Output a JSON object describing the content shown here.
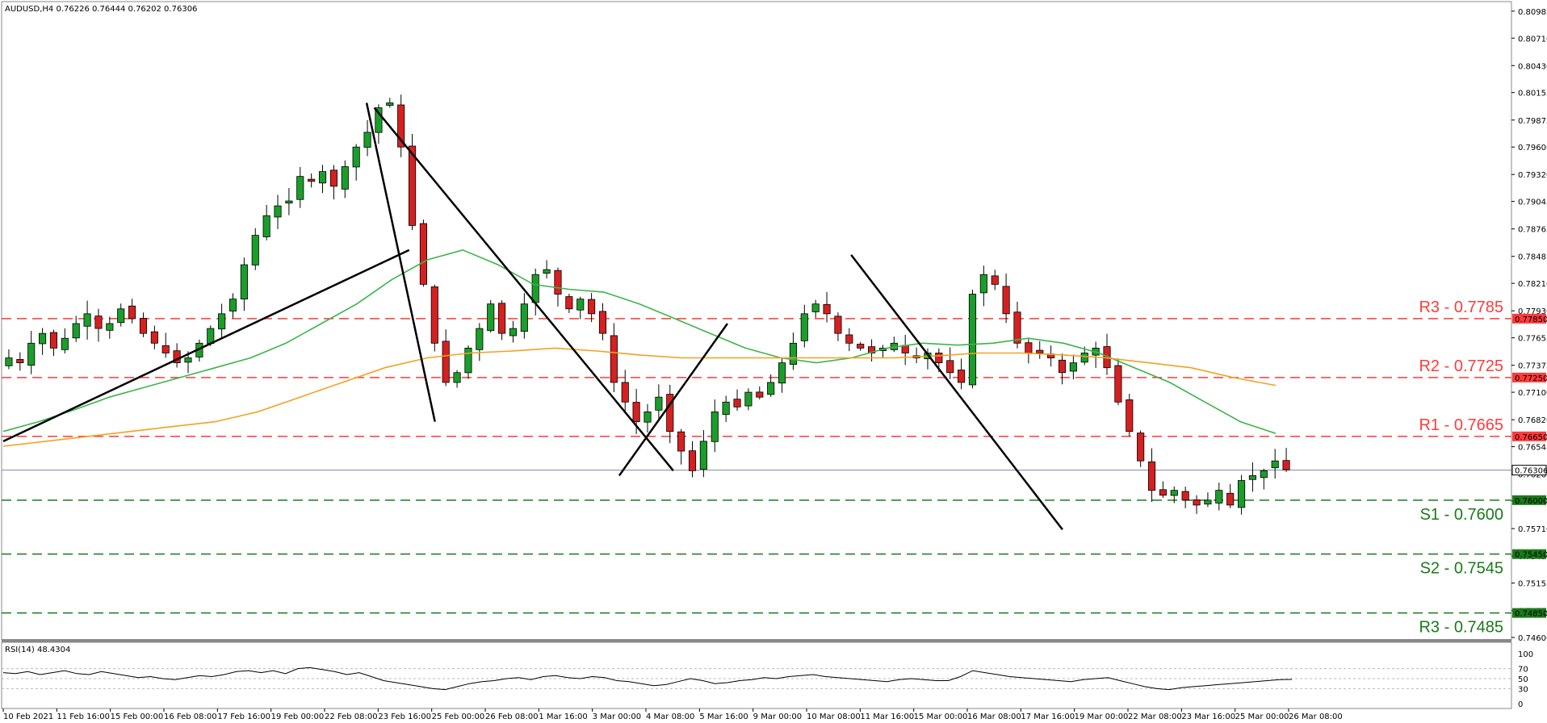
{
  "chart_data": [
    {
      "type": "candlestick",
      "title": "AUDUSD,H4  0.76226 0.76444 0.76202 0.76306",
      "ylim": [
        0.746,
        0.81
      ],
      "price_ticks": [
        "0.80985",
        "0.80710",
        "0.80430",
        "0.80155",
        "0.79875",
        "0.79600",
        "0.79320",
        "0.79045",
        "0.78765",
        "0.78485",
        "0.78210",
        "0.77930",
        "0.77655",
        "0.77375",
        "0.77100",
        "0.76820",
        "0.76545",
        "0.76265",
        "0.75990",
        "0.75710",
        "0.75430",
        "0.75155",
        "0.74875",
        "0.74600"
      ],
      "x_labels": [
        "10 Feb 2021",
        "11 Feb 16:00",
        "15 Feb 00:00",
        "16 Feb 08:00",
        "17 Feb 16:00",
        "19 Feb 00:00",
        "22 Feb 08:00",
        "23 Feb 16:00",
        "25 Feb 00:00",
        "26 Feb 08:00",
        "1 Mar 16:00",
        "3 Mar 00:00",
        "4 Mar 08:00",
        "5 Mar 16:00",
        "9 Mar 00:00",
        "10 Mar 08:00",
        "11 Mar 16:00",
        "15 Mar 00:00",
        "16 Mar 08:00",
        "17 Mar 16:00",
        "19 Mar 00:00",
        "22 Mar 08:00",
        "23 Mar 16:00",
        "25 Mar 00:00",
        "26 Mar 08:00"
      ],
      "close_path": [
        0.7745,
        0.774,
        0.776,
        0.777,
        0.7755,
        0.7765,
        0.778,
        0.779,
        0.7775,
        0.778,
        0.7795,
        0.7785,
        0.777,
        0.776,
        0.775,
        0.774,
        0.7745,
        0.776,
        0.7775,
        0.779,
        0.7805,
        0.784,
        0.787,
        0.789,
        0.79,
        0.7905,
        0.793,
        0.7925,
        0.7935,
        0.792,
        0.794,
        0.796,
        0.7975,
        0.8,
        0.8005,
        0.796,
        0.788,
        0.782,
        0.776,
        0.772,
        0.773,
        0.7755,
        0.7775,
        0.78,
        0.777,
        0.7775,
        0.78,
        0.783,
        0.7835,
        0.781,
        0.7795,
        0.7805,
        0.779,
        0.777,
        0.772,
        0.77,
        0.768,
        0.769,
        0.7705,
        0.767,
        0.765,
        0.763,
        0.766,
        0.769,
        0.77,
        0.7695,
        0.771,
        0.7705,
        0.772,
        0.774,
        0.776,
        0.779,
        0.78,
        0.779,
        0.777,
        0.776,
        0.7755,
        0.775,
        0.7755,
        0.776,
        0.775,
        0.7745,
        0.775,
        0.774,
        0.773,
        0.772,
        0.781,
        0.783,
        0.782,
        0.779,
        0.776,
        0.775,
        0.775,
        0.7745,
        0.773,
        0.774,
        0.775,
        0.7755,
        0.7735,
        0.77,
        0.767,
        0.764,
        0.761,
        0.7605,
        0.761,
        0.76,
        0.7595,
        0.76,
        0.761,
        0.7595,
        0.762,
        0.7625,
        0.763,
        0.764,
        0.7631
      ],
      "series": [
        {
          "name": "MA",
          "color": "#3cb44b",
          "values": [
            0.767,
            0.768,
            0.7692,
            0.7705,
            0.7715,
            0.7725,
            0.7735,
            0.7745,
            0.776,
            0.778,
            0.78,
            0.7825,
            0.7845,
            0.7855,
            0.784,
            0.782,
            0.7815,
            0.7812,
            0.78,
            0.7785,
            0.777,
            0.7755,
            0.7745,
            0.774,
            0.7745,
            0.7755,
            0.776,
            0.7758,
            0.776,
            0.7765,
            0.776,
            0.775,
            0.7735,
            0.772,
            0.77,
            0.768,
            0.7668
          ]
        },
        {
          "name": "MA",
          "color": "#f5a020",
          "values": [
            0.7655,
            0.766,
            0.7665,
            0.767,
            0.7675,
            0.768,
            0.769,
            0.7705,
            0.772,
            0.7735,
            0.7745,
            0.775,
            0.7752,
            0.7755,
            0.7752,
            0.7748,
            0.7745,
            0.7745,
            0.7745,
            0.7745,
            0.7745,
            0.7745,
            0.7747,
            0.775,
            0.775,
            0.7748,
            0.7745,
            0.774,
            0.7735,
            0.7725,
            0.7717
          ]
        }
      ],
      "levels": [
        {
          "label": "R3 - 0.7785",
          "value": 0.7785,
          "tag": "0.77850",
          "color": "#ff3b3b"
        },
        {
          "label": "R2 - 0.7725",
          "value": 0.7725,
          "tag": "0.77250",
          "color": "#ff3b3b"
        },
        {
          "label": "R1 - 0.7665",
          "value": 0.7665,
          "tag": "0.76650",
          "color": "#ff3b3b"
        },
        {
          "label": "S1 - 0.7600",
          "value": 0.76,
          "tag": "0.76000",
          "color": "#1a7a1a"
        },
        {
          "label": "S2 - 0.7545",
          "value": 0.7545,
          "tag": "0.75450",
          "color": "#1a7a1a"
        },
        {
          "label": "R3 - 0.7485",
          "value": 0.7485,
          "tag": "0.74850",
          "color": "#1a7a1a"
        }
      ],
      "current_price": {
        "value": 0.76306,
        "tag": "0.76306"
      }
    },
    {
      "type": "line",
      "title": "RSI(14) 48.4304",
      "ylim": [
        0,
        100
      ],
      "ticks": [
        "100",
        "70",
        "50",
        "30",
        "0"
      ],
      "dashed_levels": [
        70,
        50,
        30
      ],
      "values": [
        62,
        60,
        64,
        58,
        62,
        66,
        60,
        58,
        64,
        60,
        56,
        52,
        54,
        50,
        48,
        52,
        56,
        54,
        58,
        64,
        66,
        62,
        66,
        60,
        70,
        72,
        68,
        64,
        58,
        62,
        54,
        46,
        42,
        38,
        34,
        30,
        28,
        34,
        40,
        44,
        46,
        50,
        52,
        48,
        54,
        56,
        52,
        50,
        54,
        52,
        46,
        44,
        40,
        36,
        38,
        44,
        50,
        46,
        40,
        42,
        46,
        48,
        52,
        50,
        54,
        56,
        58,
        54,
        52,
        50,
        48,
        46,
        44,
        48,
        50,
        48,
        46,
        46,
        54,
        66,
        62,
        58,
        54,
        52,
        50,
        48,
        46,
        44,
        48,
        50,
        52,
        46,
        40,
        34,
        30,
        28,
        32,
        34,
        36,
        38,
        40,
        42,
        44,
        46,
        48,
        48.43
      ]
    }
  ]
}
